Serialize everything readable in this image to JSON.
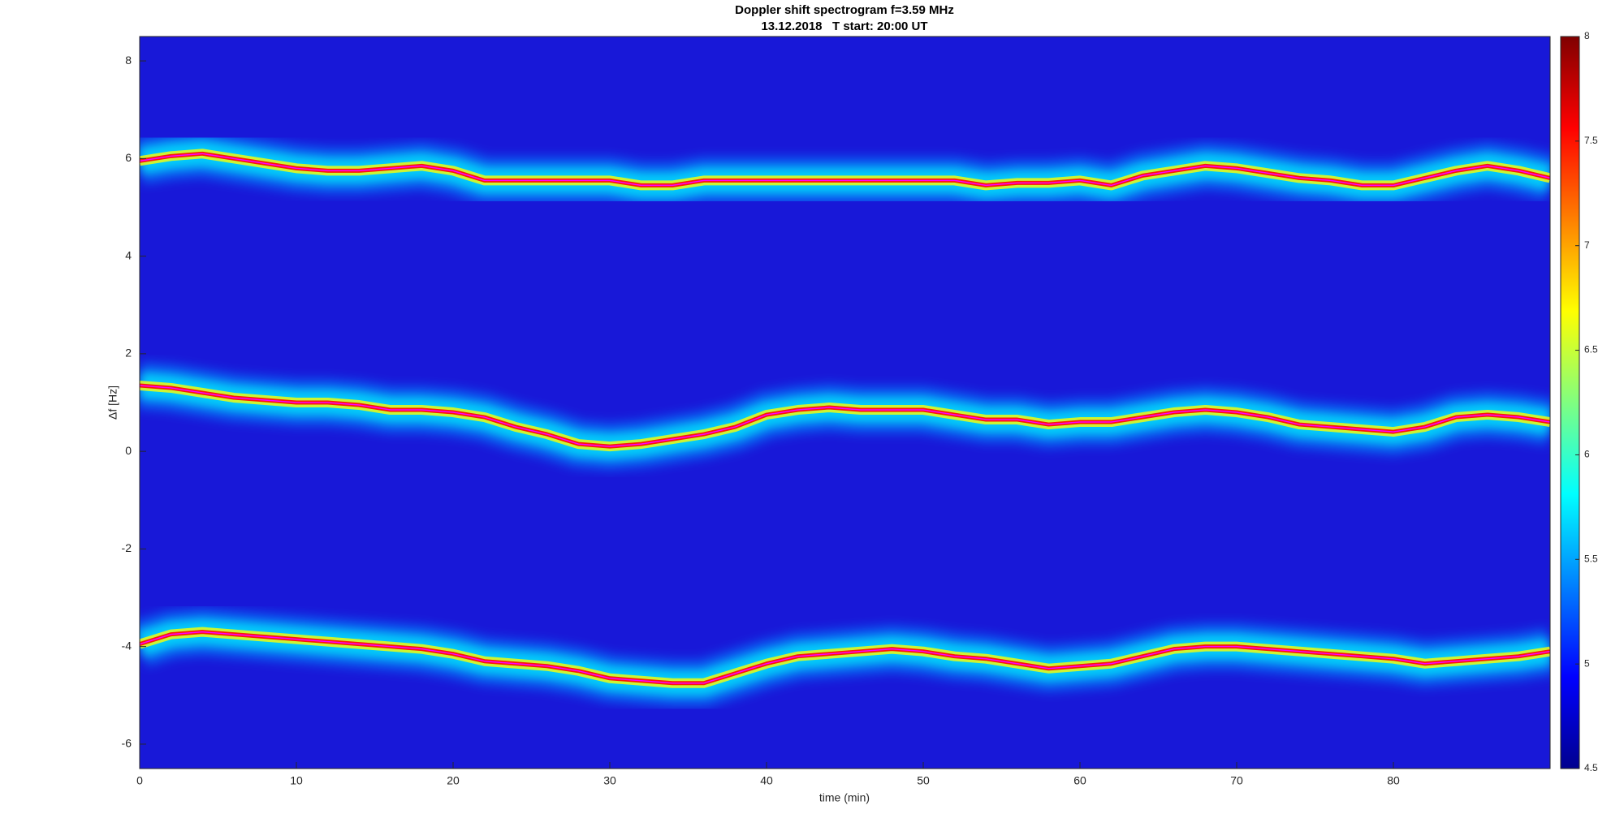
{
  "chart_data": {
    "type": "spectrogram",
    "title": [
      "Doppler shift spectrogram f=3.59 MHz",
      "13.12.2018   T start: 20:00 UT"
    ],
    "xlabel": "time (min)",
    "ylabel": "Δf [Hz]",
    "xlim": [
      0,
      90
    ],
    "xticks": [
      0,
      10,
      20,
      30,
      40,
      50,
      60,
      70,
      80
    ],
    "ylim": [
      -6.5,
      8.5
    ],
    "yticks": [
      -6,
      -4,
      -2,
      0,
      2,
      4,
      6,
      8
    ],
    "clim": [
      4.5,
      8
    ],
    "cticks": [
      4.5,
      5,
      5.5,
      6,
      6.5,
      7,
      7.5,
      8
    ],
    "colormap": [
      "#00008f",
      "#0000ff",
      "#0080ff",
      "#00ffff",
      "#80ff80",
      "#ffff00",
      "#ff8000",
      "#ff0000",
      "#800000"
    ],
    "x": [
      0,
      2,
      4,
      6,
      8,
      10,
      12,
      14,
      16,
      18,
      20,
      22,
      24,
      26,
      28,
      30,
      32,
      34,
      36,
      38,
      40,
      42,
      44,
      46,
      48,
      50,
      52,
      54,
      56,
      58,
      60,
      62,
      64,
      66,
      68,
      70,
      72,
      74,
      76,
      78,
      80,
      82,
      84,
      86,
      88,
      90
    ],
    "series": [
      {
        "color": "#ff00ff",
        "values": [
          5.95,
          6.05,
          6.1,
          6.0,
          5.9,
          5.8,
          5.75,
          5.75,
          5.8,
          5.85,
          5.75,
          5.55,
          5.55,
          5.55,
          5.55,
          5.55,
          5.45,
          5.45,
          5.55,
          5.55,
          5.55,
          5.55,
          5.55,
          5.55,
          5.55,
          5.55,
          5.55,
          5.45,
          5.5,
          5.5,
          5.55,
          5.45,
          5.65,
          5.75,
          5.85,
          5.8,
          5.7,
          5.6,
          5.55,
          5.45,
          5.45,
          5.6,
          5.75,
          5.85,
          5.75,
          5.6
        ]
      },
      {
        "color": "#ff00ff",
        "values": [
          1.35,
          1.3,
          1.2,
          1.1,
          1.05,
          1.0,
          1.0,
          0.95,
          0.85,
          0.85,
          0.8,
          0.7,
          0.5,
          0.35,
          0.15,
          0.1,
          0.15,
          0.25,
          0.35,
          0.5,
          0.75,
          0.85,
          0.9,
          0.85,
          0.85,
          0.85,
          0.75,
          0.65,
          0.65,
          0.55,
          0.6,
          0.6,
          0.7,
          0.8,
          0.85,
          0.8,
          0.7,
          0.55,
          0.5,
          0.45,
          0.4,
          0.5,
          0.7,
          0.75,
          0.7,
          0.6
        ]
      },
      {
        "color": "#ff00ff",
        "values": [
          -3.95,
          -3.75,
          -3.7,
          -3.75,
          -3.8,
          -3.85,
          -3.9,
          -3.95,
          -4.0,
          -4.05,
          -4.15,
          -4.3,
          -4.35,
          -4.4,
          -4.5,
          -4.65,
          -4.7,
          -4.75,
          -4.75,
          -4.55,
          -4.35,
          -4.2,
          -4.15,
          -4.1,
          -4.05,
          -4.1,
          -4.2,
          -4.25,
          -4.35,
          -4.45,
          -4.4,
          -4.35,
          -4.2,
          -4.05,
          -4.0,
          -4.0,
          -4.05,
          -4.1,
          -4.15,
          -4.2,
          -4.25,
          -4.35,
          -4.3,
          -4.25,
          -4.2,
          -4.1
        ]
      }
    ]
  }
}
